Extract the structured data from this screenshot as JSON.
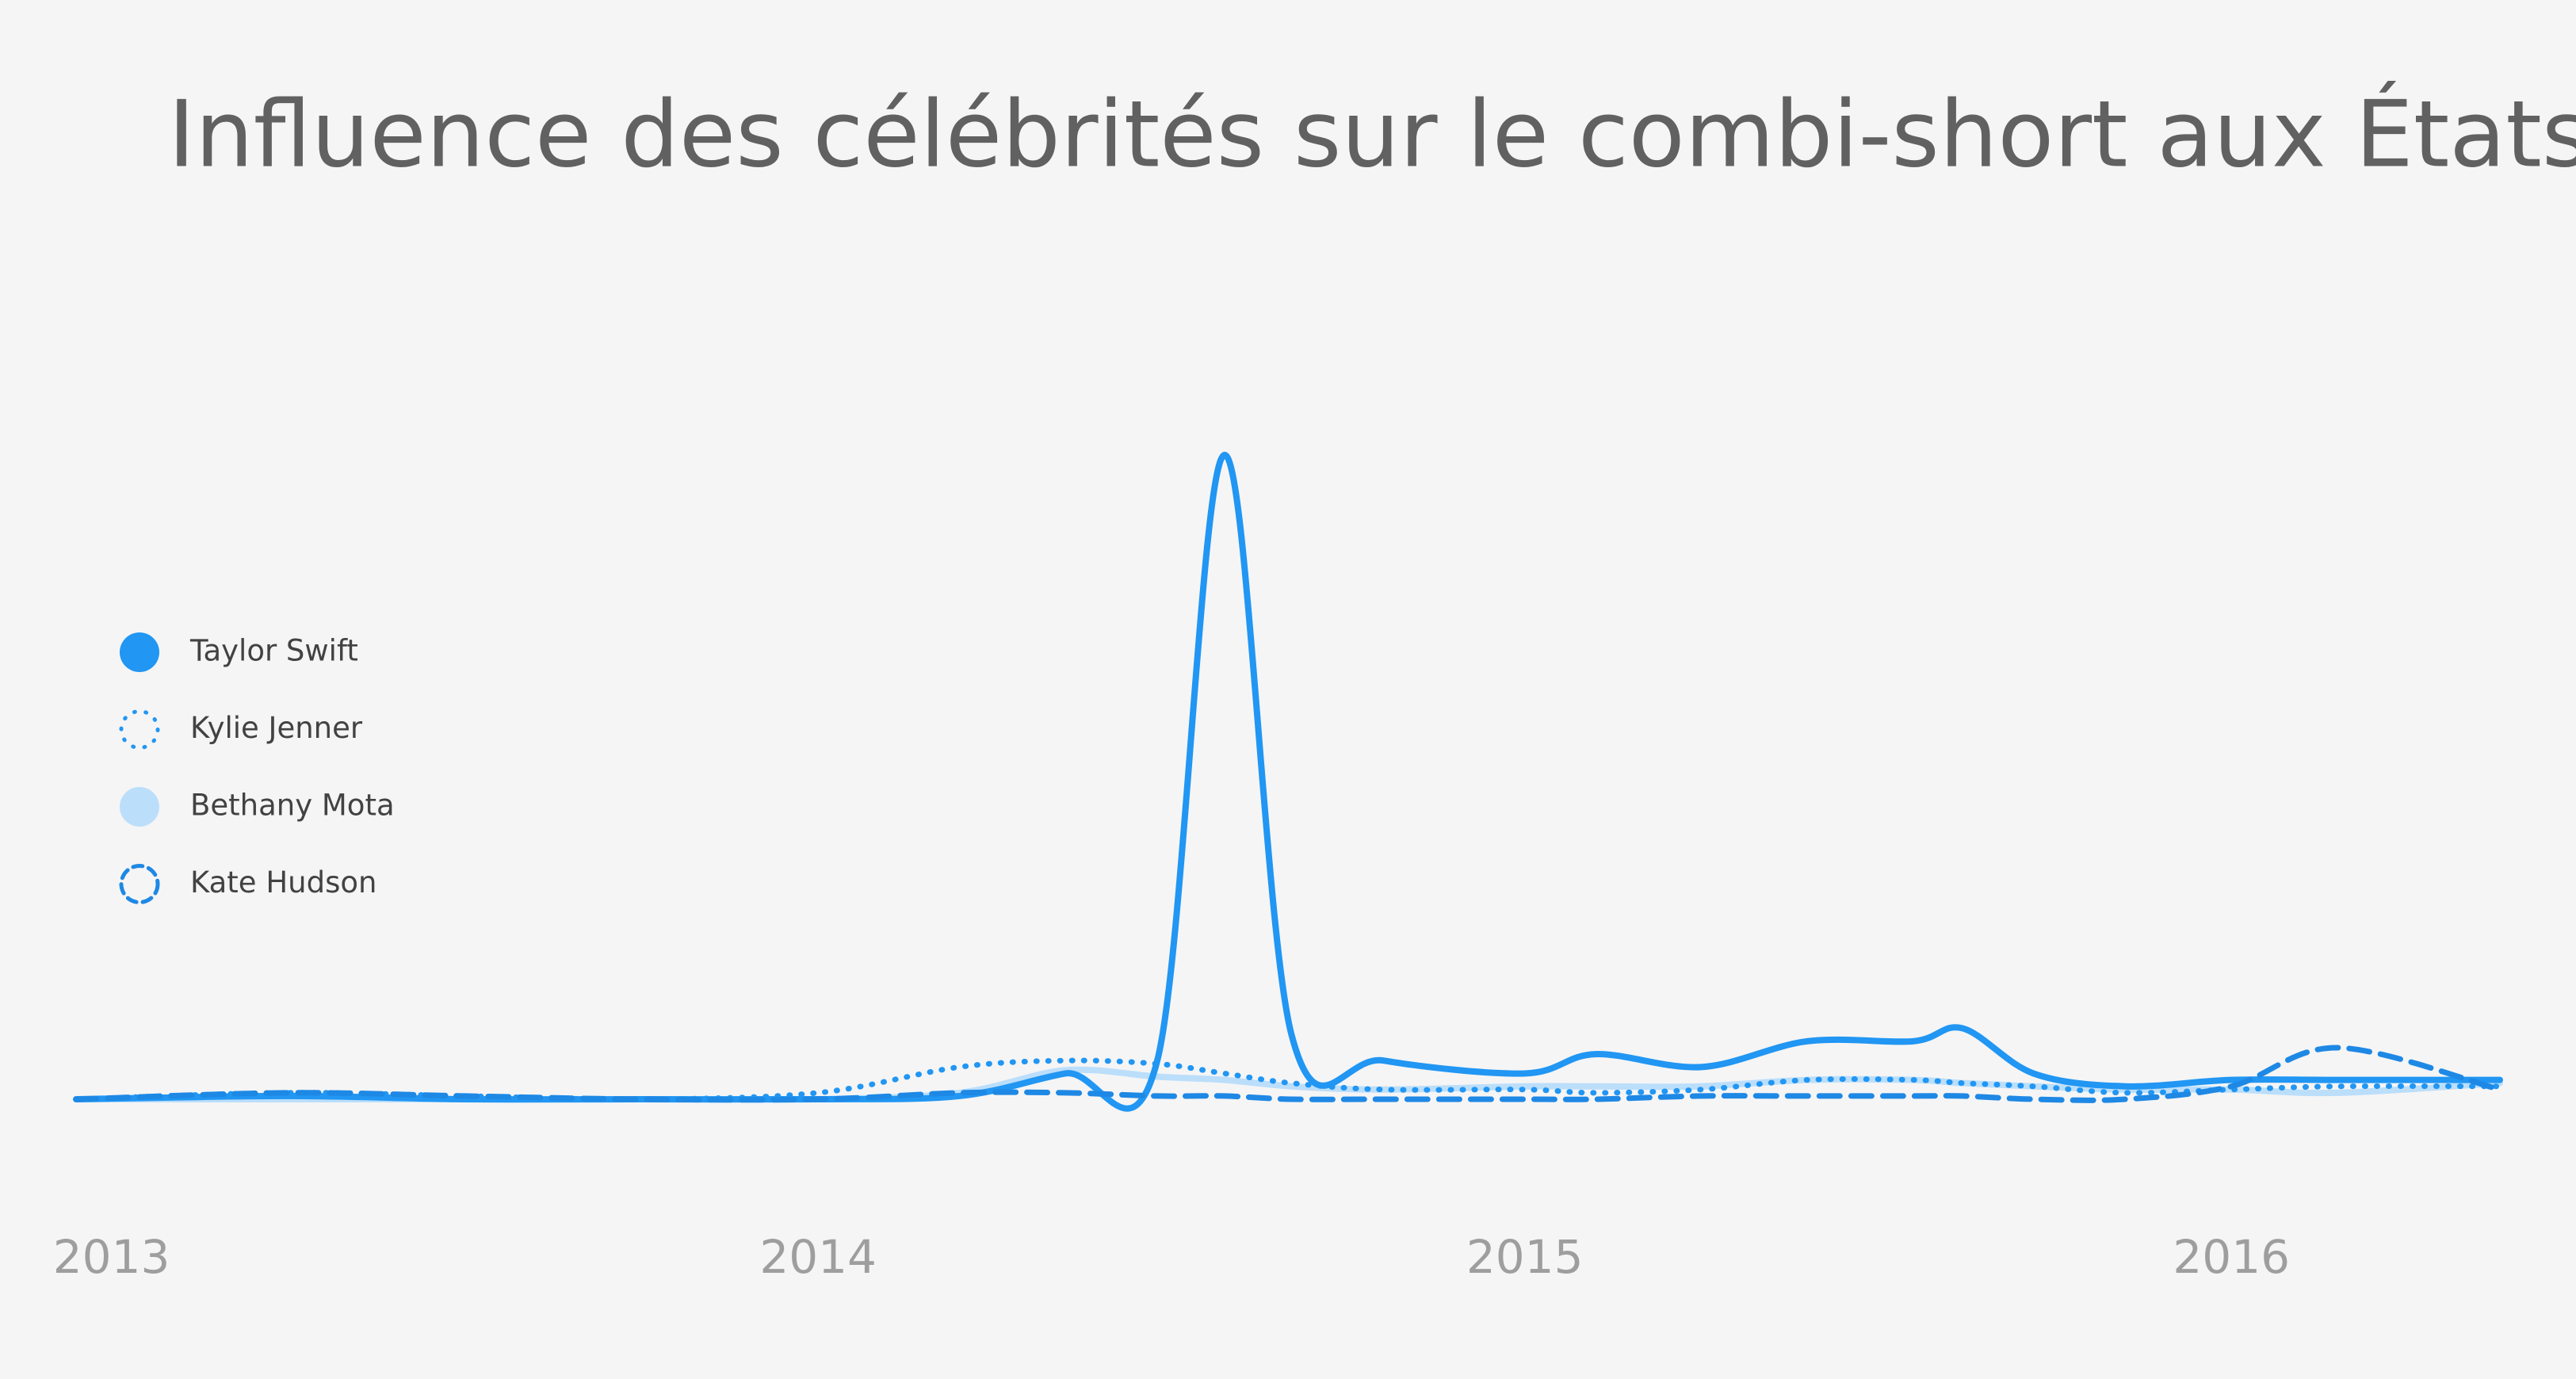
{
  "chart_data": {
    "type": "line",
    "title": "Influence des célébrités sur le combi-short aux États-Unis",
    "x": [
      2012.95,
      2013.25,
      2013.5,
      2013.75,
      2014.0,
      2014.2,
      2014.35,
      2014.48,
      2014.575,
      2014.67,
      2014.8,
      2015.0,
      2015.1,
      2015.25,
      2015.4,
      2015.55,
      2015.62,
      2015.72,
      2015.85,
      2016.0,
      2016.15,
      2016.38
    ],
    "xlim": [
      2012.95,
      2016.38
    ],
    "xticks": [
      2013,
      2014,
      2015,
      2016
    ],
    "ylim": [
      0,
      100
    ],
    "legend": "left",
    "series": [
      {
        "name": "Taylor Swift",
        "color": "#2196f3",
        "dash": "solid",
        "values": [
          0,
          0.5,
          0,
          0,
          0,
          0.5,
          4,
          6,
          100,
          10,
          6,
          4,
          7,
          5,
          9,
          9,
          11,
          4,
          2,
          3,
          3,
          3
        ]
      },
      {
        "name": "Kylie Jenner",
        "color": "#2196f3",
        "dash": "dotted",
        "values": [
          0,
          1,
          0.5,
          0,
          1,
          5,
          6,
          5.5,
          4,
          2.5,
          1.5,
          1.5,
          1,
          1.5,
          3,
          3,
          2.5,
          2,
          1,
          1.5,
          2,
          2
        ]
      },
      {
        "name": "Bethany Mota",
        "color": "#bbdefb",
        "dash": "solid",
        "values": [
          0,
          0,
          0,
          0,
          0,
          1,
          4.5,
          3.5,
          3,
          2,
          1.5,
          2,
          2,
          2,
          3,
          3,
          2.5,
          2,
          1.5,
          1.5,
          1,
          2.5
        ]
      },
      {
        "name": "Kate Hudson",
        "color": "#1e88e5",
        "dash": "dashed",
        "values": [
          0,
          1,
          0.5,
          0,
          0,
          1,
          1,
          0.5,
          0.5,
          0,
          0,
          0,
          0,
          0.5,
          0.5,
          0.5,
          0.5,
          0,
          0,
          2,
          8,
          1.5
        ]
      }
    ]
  }
}
